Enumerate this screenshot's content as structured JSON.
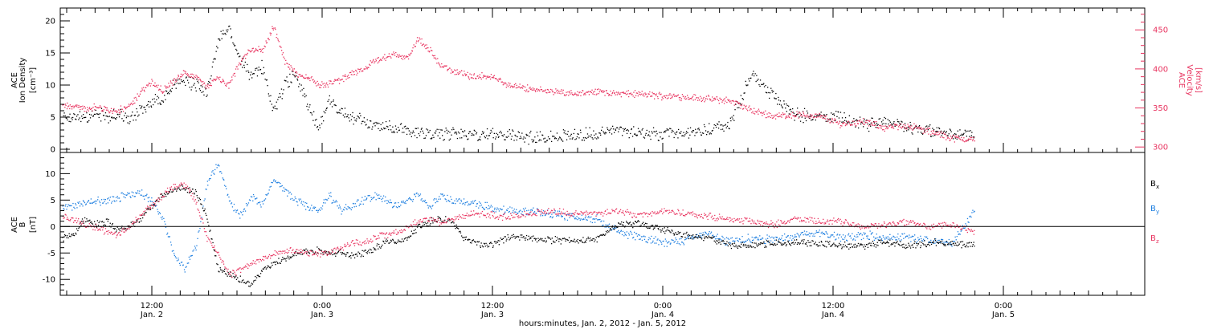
{
  "chart_data": [
    {
      "type": "scatter",
      "panel": "ion-density-velocity",
      "ylabel_left": [
        "ACE",
        "Ion Density",
        "[cm⁻³]"
      ],
      "ylabel_right": [
        "ACE",
        "Velocity",
        "[km/s]"
      ],
      "yticks_left": [
        "0",
        "5",
        "10",
        "15",
        "20"
      ],
      "ylim_left": [
        -0.5,
        22
      ],
      "yticks_right": [
        "300",
        "350",
        "400",
        "450"
      ],
      "ylim_right": [
        293,
        478
      ],
      "series": [
        {
          "color": "#000000",
          "axis": "left",
          "x": [
            0,
            1,
            2,
            3,
            4,
            5,
            6,
            7,
            8,
            9,
            10,
            11,
            12,
            13,
            14,
            15,
            16,
            17,
            18,
            19,
            20,
            21,
            22,
            23,
            24,
            25,
            26,
            27,
            28,
            29,
            30,
            31,
            32,
            33,
            34,
            35,
            36,
            37,
            38,
            39,
            40,
            42,
            44,
            46,
            48,
            50,
            52,
            54,
            56,
            58,
            60,
            62,
            64,
            66,
            68,
            70,
            72,
            74,
            76,
            78,
            80,
            82
          ],
          "y": [
            5.0,
            5.3,
            4.8,
            5.5,
            5.0,
            5.5,
            4.5,
            6.0,
            7.5,
            8.0,
            10.0,
            11.0,
            10.0,
            9.0,
            17.0,
            19.0,
            14.0,
            11.0,
            13.0,
            6.0,
            10.0,
            12.0,
            7.0,
            3.5,
            7.5,
            6.0,
            5.0,
            4.5,
            4.0,
            3.5,
            3.5,
            3.0,
            2.8,
            2.7,
            2.5,
            2.5,
            2.6,
            2.4,
            2.3,
            2.5,
            2.2,
            2.0,
            2.0,
            2.2,
            2.5,
            3.0,
            2.5,
            2.3,
            2.5,
            3.0,
            4.0,
            12.0,
            8.0,
            5.5,
            5.0,
            5.0,
            3.8,
            4.5,
            3.5,
            3.0,
            2.5,
            2.0
          ]
        },
        {
          "color": "#e8335f",
          "axis": "right",
          "x": [
            0,
            1,
            2,
            3,
            4,
            5,
            6,
            7,
            8,
            9,
            10,
            11,
            12,
            13,
            14,
            15,
            16,
            17,
            18,
            19,
            20,
            21,
            22,
            23,
            24,
            25,
            26,
            27,
            28,
            29,
            30,
            31,
            32,
            33,
            34,
            35,
            36,
            37,
            38,
            39,
            40,
            42,
            44,
            46,
            48,
            50,
            52,
            54,
            56,
            58,
            60,
            62,
            64,
            66,
            68,
            70,
            72,
            74,
            76,
            78,
            80,
            82
          ],
          "y": [
            352,
            352,
            350,
            352,
            348,
            347,
            352,
            368,
            385,
            372,
            385,
            395,
            390,
            378,
            390,
            380,
            410,
            425,
            425,
            455,
            410,
            395,
            390,
            380,
            382,
            385,
            395,
            400,
            410,
            415,
            420,
            412,
            440,
            425,
            405,
            398,
            395,
            390,
            392,
            388,
            380,
            375,
            372,
            370,
            371,
            369,
            368,
            366,
            365,
            362,
            360,
            347,
            340,
            342,
            340,
            330,
            333,
            325,
            328,
            320,
            312,
            310
          ]
        }
      ]
    },
    {
      "type": "scatter",
      "panel": "magnetic-field",
      "ylabel": [
        "ACE",
        "B",
        "[nT]"
      ],
      "yticks": [
        "-10",
        "-5",
        "0",
        "5",
        "10"
      ],
      "ylim": [
        -13,
        14
      ],
      "zero_line": true,
      "legend": [
        "Bx",
        "By",
        "Bz"
      ],
      "legend_position": "right",
      "series": [
        {
          "name": "Bx",
          "color": "#000000",
          "x": [
            0,
            1,
            2,
            3,
            4,
            5,
            6,
            7,
            8,
            9,
            10,
            11,
            12,
            13,
            14,
            15,
            16,
            17,
            18,
            19,
            20,
            21,
            22,
            23,
            24,
            25,
            26,
            27,
            28,
            29,
            30,
            31,
            32,
            33,
            34,
            35,
            36,
            37,
            38,
            39,
            40,
            42,
            44,
            46,
            48,
            50,
            52,
            54,
            56,
            58,
            60,
            62,
            64,
            66,
            68,
            70,
            72,
            74,
            76,
            78,
            80,
            82
          ],
          "y": [
            -2.0,
            -1.5,
            1.5,
            0.5,
            1.0,
            -0.5,
            0.0,
            1.5,
            4.0,
            6.0,
            7.0,
            7.5,
            6.5,
            2.0,
            -8.0,
            -9.0,
            -10.0,
            -11.0,
            -8.0,
            -7.0,
            -6.0,
            -5.0,
            -4.5,
            -4.5,
            -5.0,
            -5.0,
            -5.5,
            -5.0,
            -4.0,
            -3.0,
            -2.5,
            -2.0,
            0.0,
            1.0,
            1.5,
            1.0,
            -2.0,
            -3.0,
            -3.5,
            -3.0,
            -2.0,
            -2.0,
            -2.5,
            -2.5,
            -2.5,
            0.5,
            0.5,
            -0.5,
            -1.5,
            -2.0,
            -3.5,
            -3.5,
            -3.0,
            -3.0,
            -3.0,
            -3.5,
            -3.5,
            -3.0,
            -3.5,
            -3.0,
            -3.0,
            -3.5
          ]
        },
        {
          "name": "By",
          "color": "#1e7fe0",
          "x": [
            0,
            1,
            2,
            3,
            4,
            5,
            6,
            7,
            8,
            9,
            10,
            11,
            12,
            13,
            14,
            15,
            16,
            17,
            18,
            19,
            20,
            21,
            22,
            23,
            24,
            25,
            26,
            27,
            28,
            29,
            30,
            31,
            32,
            33,
            34,
            35,
            36,
            37,
            38,
            39,
            40,
            42,
            44,
            46,
            48,
            50,
            52,
            54,
            56,
            58,
            60,
            62,
            64,
            66,
            68,
            70,
            72,
            74,
            76,
            78,
            80,
            82
          ],
          "y": [
            3.5,
            4.0,
            4.5,
            5.0,
            5.0,
            5.5,
            6.0,
            6.5,
            5.0,
            2.0,
            -5.0,
            -8.0,
            -4.0,
            8.0,
            12.0,
            5.0,
            2.0,
            6.0,
            4.0,
            9.0,
            7.0,
            5.0,
            4.0,
            3.0,
            6.0,
            3.0,
            4.0,
            5.0,
            6.0,
            5.0,
            4.0,
            5.0,
            6.0,
            4.0,
            6.0,
            5.0,
            5.0,
            4.5,
            4.0,
            3.5,
            3.0,
            3.0,
            2.5,
            2.0,
            1.5,
            -1.0,
            -2.0,
            -3.0,
            -2.5,
            -1.0,
            -3.0,
            -2.0,
            -2.5,
            -1.5,
            -1.0,
            -2.0,
            -1.5,
            -2.0,
            -2.0,
            -2.5,
            -3.0,
            3.0
          ]
        },
        {
          "name": "Bz",
          "color": "#e8335f",
          "x": [
            0,
            1,
            2,
            3,
            4,
            5,
            6,
            7,
            8,
            9,
            10,
            11,
            12,
            13,
            14,
            15,
            16,
            17,
            18,
            19,
            20,
            21,
            22,
            23,
            24,
            25,
            26,
            27,
            28,
            29,
            30,
            31,
            32,
            33,
            34,
            35,
            36,
            37,
            38,
            39,
            40,
            42,
            44,
            46,
            48,
            50,
            52,
            54,
            56,
            58,
            60,
            62,
            64,
            66,
            68,
            70,
            72,
            74,
            76,
            78,
            80,
            82
          ],
          "y": [
            2.0,
            1.5,
            0.5,
            0.0,
            -1.0,
            -1.5,
            0.0,
            2.0,
            4.0,
            6.0,
            7.5,
            8.0,
            5.0,
            -2.0,
            -5.0,
            -9.0,
            -8.0,
            -7.0,
            -6.0,
            -5.0,
            -4.5,
            -4.5,
            -5.0,
            -5.0,
            -5.0,
            -4.0,
            -3.0,
            -3.0,
            -2.0,
            -1.5,
            -1.0,
            0.0,
            1.0,
            1.5,
            1.0,
            1.5,
            2.0,
            2.5,
            2.5,
            2.0,
            2.0,
            2.5,
            3.0,
            2.5,
            2.5,
            3.0,
            2.0,
            3.0,
            2.5,
            2.0,
            1.5,
            1.0,
            0.5,
            1.5,
            1.0,
            1.0,
            0.0,
            0.5,
            1.0,
            0.0,
            0.5,
            -1.0
          ]
        }
      ]
    }
  ],
  "x_axis": {
    "ticks": [
      {
        "hour": 12,
        "time": "12:00",
        "date": "Jan. 2"
      },
      {
        "hour": 24,
        "time": "0:00",
        "date": "Jan. 3"
      },
      {
        "hour": 36,
        "time": "12:00",
        "date": "Jan. 3"
      },
      {
        "hour": 48,
        "time": "0:00",
        "date": "Jan. 4"
      },
      {
        "hour": 60,
        "time": "12:00",
        "date": "Jan. 4"
      },
      {
        "hour": 72,
        "time": "0:00",
        "date": "Jan. 5"
      }
    ],
    "label": "hours:minutes, Jan.  2, 2012 - Jan.  5, 2012"
  },
  "legend_labels": {
    "bx": "B",
    "bx_sub": "x",
    "by": "B",
    "by_sub": "y",
    "bz": "B",
    "bz_sub": "z"
  },
  "colors": {
    "black": "#000000",
    "pink": "#e8335f",
    "blue": "#1e7fe0"
  }
}
